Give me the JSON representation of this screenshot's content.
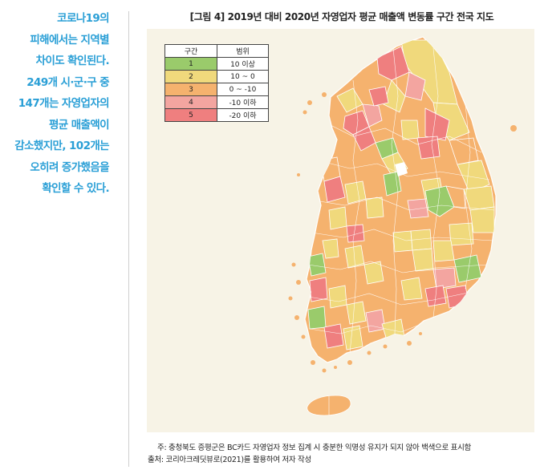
{
  "quote": {
    "lines": [
      "코로나19의",
      "피해에서는 지역별",
      "차이도 확인된다.",
      "249개 시·군·구 중",
      "147개는 자영업자의",
      "평균 매출액이",
      "감소했지만, 102개는",
      "오히려 증가했음을",
      "확인할 수 있다."
    ]
  },
  "figure": {
    "title": "[그림 4] 2019년 대비 2020년 자영업자 평균 매출액 변동률 구간 전국 지도"
  },
  "legend": {
    "header": [
      "구간",
      "범위"
    ],
    "rows": [
      {
        "band": "1",
        "range": "10 이상",
        "color": "#9acb6b"
      },
      {
        "band": "2",
        "range": "10 ~ 0",
        "color": "#f0d97c"
      },
      {
        "band": "3",
        "range": "0 ~ -10",
        "color": "#f5b26e"
      },
      {
        "band": "4",
        "range": "-10 이하",
        "color": "#f3a5a0"
      },
      {
        "band": "5",
        "range": "-20 이하",
        "color": "#ef7f7f"
      }
    ]
  },
  "map": {
    "colors": {
      "background": "#f7f3e6",
      "band1": "#9acb6b",
      "band2": "#f0d97c",
      "band3": "#f5b26e",
      "band4": "#f3a5a0",
      "band5": "#ef7f7f",
      "blank": "#ffffff",
      "border": "#ffffff"
    }
  },
  "notes": {
    "note": "주: 충청북도 증평군은 BC카드 자영업자 정보 집계 시 충분한 익명성 유지가 되지 않아 백색으로 표시함",
    "source": "출처: 코리아크레딧뷰로(2021)를 활용하여 저자 작성"
  }
}
